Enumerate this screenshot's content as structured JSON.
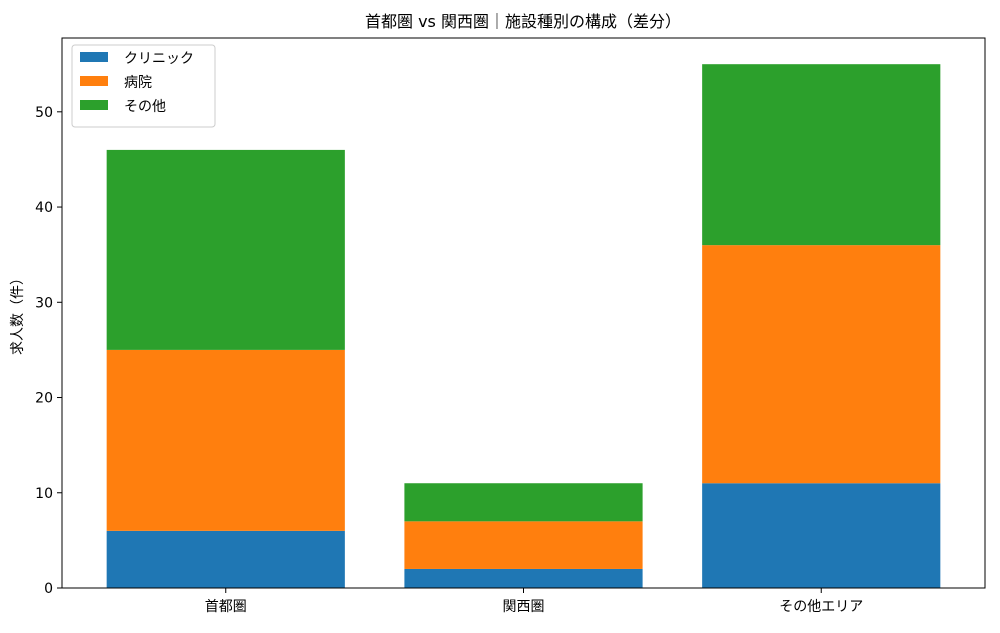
{
  "chart_data": {
    "type": "bar",
    "stacked": true,
    "title": "首都圏 vs 関西圏｜施設種別の構成（差分）",
    "xlabel": "",
    "ylabel": "求人数（件）",
    "categories": [
      "首都圏",
      "関西圏",
      "その他エリア"
    ],
    "series": [
      {
        "name": "クリニック",
        "values": [
          6,
          2,
          11
        ],
        "color": "#1f77b4"
      },
      {
        "name": "病院",
        "values": [
          19,
          5,
          25
        ],
        "color": "#ff7f0e"
      },
      {
        "name": "その他",
        "values": [
          21,
          4,
          19
        ],
        "color": "#2ca02c"
      }
    ],
    "ylim": [
      0,
      57.75
    ],
    "yticks": [
      0,
      10,
      20,
      30,
      40,
      50
    ],
    "grid": false,
    "legend": "top-left"
  }
}
